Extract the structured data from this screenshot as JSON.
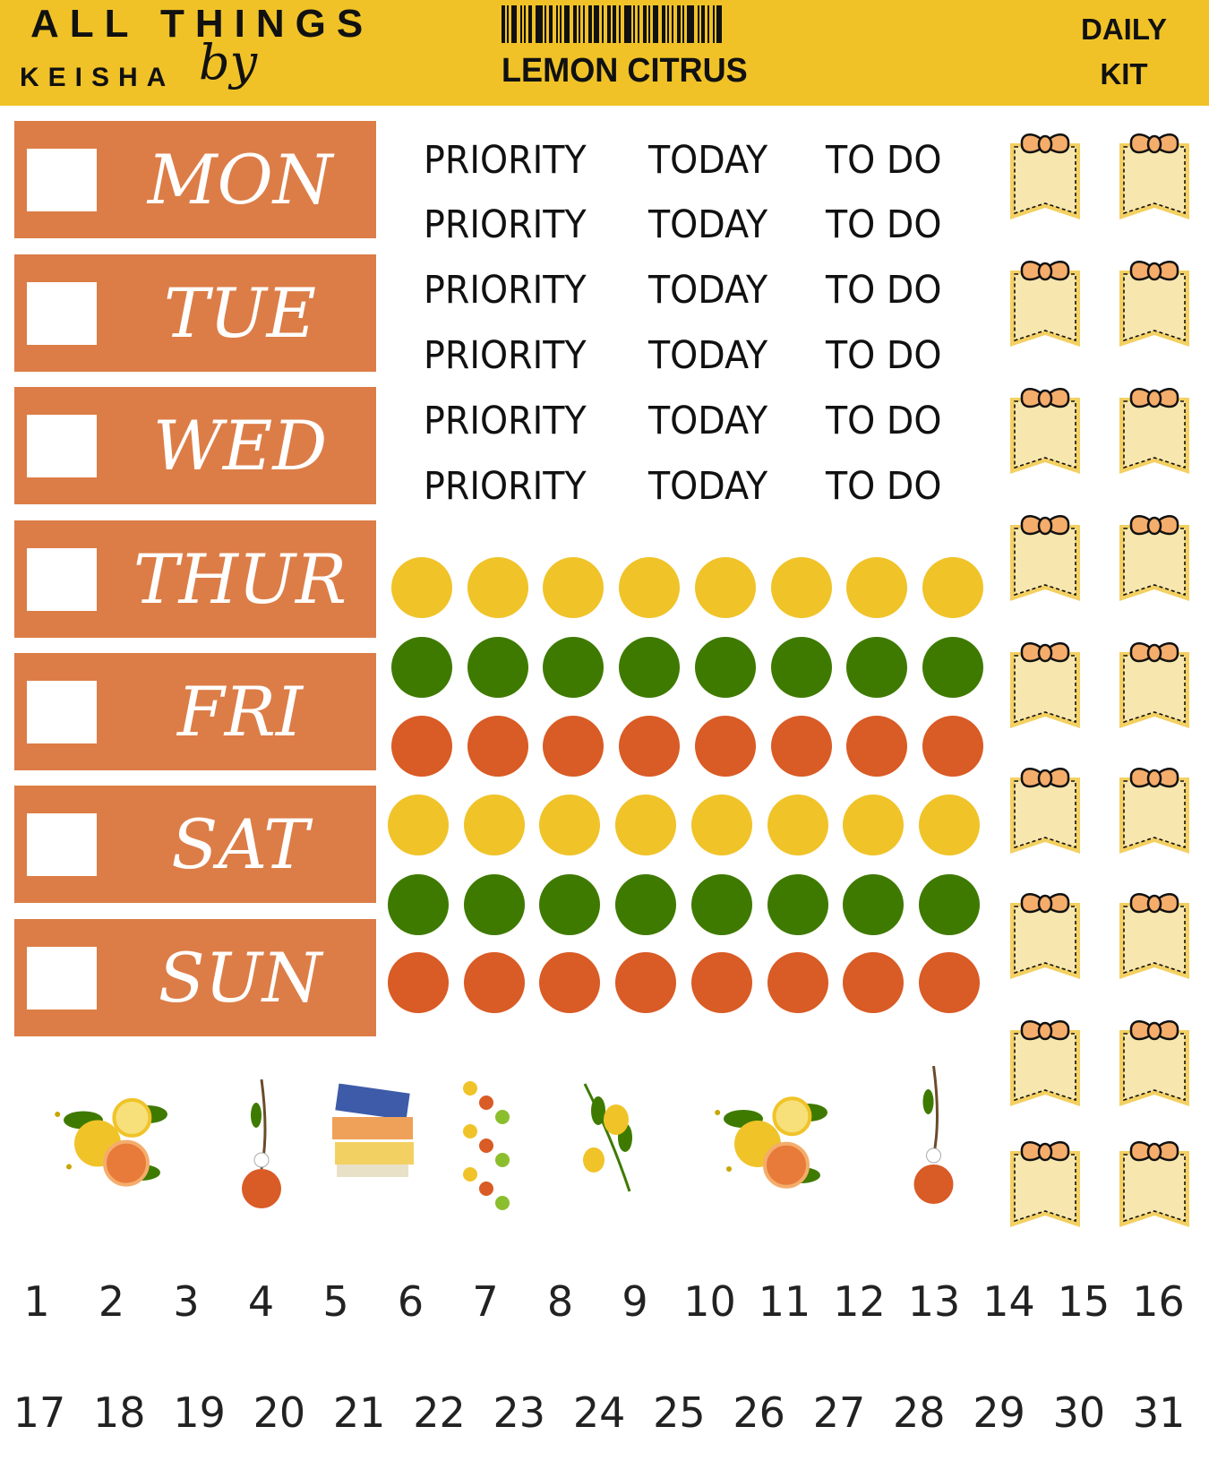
{
  "header": {
    "logo_top": "ALL THINGS",
    "logo_by": "by",
    "logo_bottom": "KEISHA",
    "title": "LEMON CITRUS",
    "kit_line1": "DAILY",
    "kit_line2": "KIT"
  },
  "days": [
    {
      "label": "MON"
    },
    {
      "label": "TUE"
    },
    {
      "label": "WED"
    },
    {
      "label": "THUR"
    },
    {
      "label": "FRI"
    },
    {
      "label": "SAT"
    },
    {
      "label": "SUN"
    }
  ],
  "priority_rows": [
    [
      "PRIORITY",
      "TODAY",
      "TO DO"
    ],
    [
      "PRIORITY",
      "TODAY",
      "TO DO"
    ],
    [
      "PRIORITY",
      "TODAY",
      "TO DO"
    ],
    [
      "PRIORITY",
      "TODAY",
      "TO DO"
    ],
    [
      "PRIORITY",
      "TODAY",
      "TO DO"
    ],
    [
      "PRIORITY",
      "TODAY",
      "TO DO"
    ]
  ],
  "dot_rows": [
    "yellow",
    "green",
    "orange",
    "yellow",
    "green",
    "orange"
  ],
  "colors": {
    "header": "#F0C227",
    "day": "#DC7D47",
    "yellow": "#F0C329",
    "green": "#3F7A00",
    "orange": "#D95B25",
    "bookmark_fill": "#F7E6AE",
    "bookmark_border": "#F3D062",
    "bow": "#F4AD6B"
  },
  "illustrations": [
    "citrus-bouquet-icon",
    "orange-branch-icon",
    "citrus-books-icon",
    "citrus-slices-icon",
    "lemon-branch-icon",
    "citrus-bouquet-icon",
    "orange-branch-icon"
  ],
  "numbers": [
    "1",
    "2",
    "3",
    "4",
    "5",
    "6",
    "7",
    "8",
    "9",
    "10",
    "11",
    "12",
    "13",
    "14",
    "15",
    "16",
    "17",
    "18",
    "19",
    "20",
    "21",
    "22",
    "23",
    "24",
    "25",
    "26",
    "27",
    "28",
    "29",
    "30",
    "31"
  ]
}
